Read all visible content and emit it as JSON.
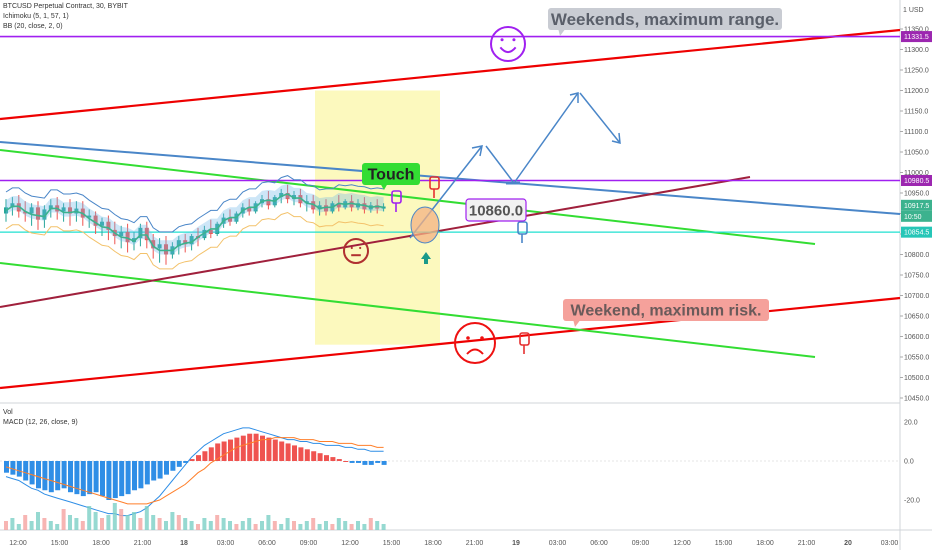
{
  "header": {
    "symbol_line": "BTCUSD Perpetual Contract, 30, BYBIT",
    "ichimoku_line": "Ichimoku (5, 1, 57, 1)",
    "bb_line": "BB (20, close, 2, 0)",
    "vol_label": "Vol",
    "macd_label": "MACD (12, 26, close, 9)"
  },
  "price_axis": {
    "currency": "1 USD",
    "ticks": [
      "11350.0",
      "11300.0",
      "11250.0",
      "11200.0",
      "11150.0",
      "11100.0",
      "11050.0",
      "11000.0",
      "10950.0",
      "10900.0",
      "10850.0",
      "10800.0",
      "10750.0",
      "10700.0",
      "10650.0",
      "10600.0",
      "10550.0",
      "10500.0",
      "10450.0"
    ],
    "badges": [
      {
        "label": "11331.5",
        "color": "#9c27b0"
      },
      {
        "label": "10980.5",
        "color": "#9c27b0"
      },
      {
        "label": "10917.5",
        "color": "#3cb28e"
      },
      {
        "label": "10:50",
        "color": "#3cb28e"
      },
      {
        "label": "10854.5",
        "color": "#26c6b7"
      }
    ]
  },
  "macd_axis": {
    "ticks": [
      "20.0",
      "0.0",
      "-20.0"
    ]
  },
  "time_axis": {
    "ticks": [
      "12:00",
      "15:00",
      "18:00",
      "21:00",
      "18",
      "03:00",
      "06:00",
      "09:00",
      "12:00",
      "15:00",
      "18:00",
      "21:00",
      "19",
      "03:00",
      "06:00",
      "09:00",
      "12:00",
      "15:00",
      "18:00",
      "21:00",
      "20",
      "03:00"
    ]
  },
  "annotations": {
    "top_note": "Weekends, maximum range.",
    "bottom_note": "Weekend, maximum risk.",
    "touch_label": "Touch",
    "price_label": "10860.0"
  },
  "colors": {
    "up": "#26a69a",
    "down": "#ef5350",
    "red_line": "#ee0000",
    "green_line": "#33dd33",
    "blue_line": "#4a86c8",
    "purple_line": "#a020f0",
    "maroon_line": "#a0203c",
    "cyan_line": "#20e0d0"
  },
  "chart_data": {
    "type": "candlestick",
    "symbol": "BTCUSD Perpetual Contract",
    "interval": "30",
    "exchange": "BYBIT",
    "ylim": [
      10450,
      11400
    ],
    "candles": [
      {
        "o": 10900,
        "h": 10935,
        "c": 10915,
        "l": 10880
      },
      {
        "o": 10915,
        "h": 10940,
        "c": 10925,
        "l": 10895
      },
      {
        "o": 10925,
        "h": 10945,
        "c": 10905,
        "l": 10890
      },
      {
        "o": 10905,
        "h": 10930,
        "c": 10900,
        "l": 10880
      },
      {
        "o": 10900,
        "h": 10925,
        "c": 10915,
        "l": 10870
      },
      {
        "o": 10915,
        "h": 10930,
        "c": 10885,
        "l": 10860
      },
      {
        "o": 10885,
        "h": 10920,
        "c": 10910,
        "l": 10865
      },
      {
        "o": 10910,
        "h": 10935,
        "c": 10920,
        "l": 10890
      },
      {
        "o": 10920,
        "h": 10940,
        "c": 10905,
        "l": 10885
      },
      {
        "o": 10905,
        "h": 10925,
        "c": 10915,
        "l": 10880
      },
      {
        "o": 10915,
        "h": 10935,
        "c": 10900,
        "l": 10870
      },
      {
        "o": 10900,
        "h": 10930,
        "c": 10912,
        "l": 10880
      },
      {
        "o": 10912,
        "h": 10930,
        "c": 10890,
        "l": 10870
      },
      {
        "o": 10890,
        "h": 10910,
        "c": 10895,
        "l": 10865
      },
      {
        "o": 10895,
        "h": 10905,
        "c": 10870,
        "l": 10850
      },
      {
        "o": 10870,
        "h": 10890,
        "c": 10880,
        "l": 10845
      },
      {
        "o": 10880,
        "h": 10895,
        "c": 10860,
        "l": 10835
      },
      {
        "o": 10860,
        "h": 10880,
        "c": 10845,
        "l": 10825
      },
      {
        "o": 10845,
        "h": 10870,
        "c": 10855,
        "l": 10815
      },
      {
        "o": 10855,
        "h": 10875,
        "c": 10830,
        "l": 10805
      },
      {
        "o": 10830,
        "h": 10855,
        "c": 10840,
        "l": 10810
      },
      {
        "o": 10840,
        "h": 10875,
        "c": 10865,
        "l": 10820
      },
      {
        "o": 10865,
        "h": 10880,
        "c": 10835,
        "l": 10815
      },
      {
        "o": 10835,
        "h": 10850,
        "c": 10815,
        "l": 10790
      },
      {
        "o": 10815,
        "h": 10840,
        "c": 10825,
        "l": 10780
      },
      {
        "o": 10825,
        "h": 10845,
        "c": 10800,
        "l": 10775
      },
      {
        "o": 10800,
        "h": 10830,
        "c": 10820,
        "l": 10790
      },
      {
        "o": 10820,
        "h": 10845,
        "c": 10835,
        "l": 10800
      },
      {
        "o": 10835,
        "h": 10850,
        "c": 10825,
        "l": 10805
      },
      {
        "o": 10825,
        "h": 10850,
        "c": 10845,
        "l": 10810
      },
      {
        "o": 10845,
        "h": 10865,
        "c": 10840,
        "l": 10820
      },
      {
        "o": 10840,
        "h": 10870,
        "c": 10860,
        "l": 10835
      },
      {
        "o": 10860,
        "h": 10885,
        "c": 10850,
        "l": 10840
      },
      {
        "o": 10850,
        "h": 10880,
        "c": 10875,
        "l": 10845
      },
      {
        "o": 10875,
        "h": 10900,
        "c": 10890,
        "l": 10865
      },
      {
        "o": 10890,
        "h": 10910,
        "c": 10880,
        "l": 10870
      },
      {
        "o": 10880,
        "h": 10905,
        "c": 10900,
        "l": 10875
      },
      {
        "o": 10900,
        "h": 10925,
        "c": 10915,
        "l": 10890
      },
      {
        "o": 10915,
        "h": 10935,
        "c": 10905,
        "l": 10895
      },
      {
        "o": 10905,
        "h": 10930,
        "c": 10925,
        "l": 10900
      },
      {
        "o": 10925,
        "h": 10945,
        "c": 10935,
        "l": 10915
      },
      {
        "o": 10935,
        "h": 10955,
        "c": 10920,
        "l": 10910
      },
      {
        "o": 10920,
        "h": 10945,
        "c": 10940,
        "l": 10915
      },
      {
        "o": 10940,
        "h": 10960,
        "c": 10950,
        "l": 10925
      },
      {
        "o": 10950,
        "h": 10970,
        "c": 10935,
        "l": 10925
      },
      {
        "o": 10935,
        "h": 10955,
        "c": 10945,
        "l": 10920
      },
      {
        "o": 10945,
        "h": 10960,
        "c": 10925,
        "l": 10915
      },
      {
        "o": 10925,
        "h": 10945,
        "c": 10930,
        "l": 10905
      },
      {
        "o": 10930,
        "h": 10945,
        "c": 10910,
        "l": 10900
      },
      {
        "o": 10910,
        "h": 10930,
        "c": 10920,
        "l": 10895
      },
      {
        "o": 10920,
        "h": 10935,
        "c": 10905,
        "l": 10895
      },
      {
        "o": 10905,
        "h": 10930,
        "c": 10925,
        "l": 10900
      },
      {
        "o": 10925,
        "h": 10945,
        "c": 10915,
        "l": 10905
      },
      {
        "o": 10915,
        "h": 10935,
        "c": 10930,
        "l": 10910
      },
      {
        "o": 10930,
        "h": 10945,
        "c": 10915,
        "l": 10905
      },
      {
        "o": 10915,
        "h": 10935,
        "c": 10925,
        "l": 10908
      },
      {
        "o": 10925,
        "h": 10940,
        "c": 10910,
        "l": 10900
      },
      {
        "o": 10910,
        "h": 10928,
        "c": 10920,
        "l": 10902
      },
      {
        "o": 10920,
        "h": 10935,
        "c": 10912,
        "l": 10900
      },
      {
        "o": 10912,
        "h": 10925,
        "c": 10917,
        "l": 10905
      }
    ],
    "macd_histogram": [
      -6,
      -7,
      -8,
      -10,
      -12,
      -14,
      -15,
      -16,
      -15,
      -14,
      -16,
      -17,
      -18,
      -17,
      -16,
      -18,
      -20,
      -19,
      -18,
      -17,
      -15,
      -14,
      -12,
      -10,
      -9,
      -7,
      -5,
      -3,
      -1,
      1,
      3,
      5,
      7,
      9,
      10,
      11,
      12,
      13,
      14,
      14,
      13,
      12,
      11,
      10,
      9,
      8,
      7,
      6,
      5,
      4,
      3,
      2,
      1,
      0,
      -1,
      -1,
      -2,
      -2,
      -1,
      -2
    ],
    "macd_line": [
      -8,
      -9,
      -10,
      -12,
      -14,
      -15,
      -17,
      -18,
      -19,
      -20,
      -21,
      -22,
      -23,
      -24,
      -25,
      -26,
      -27,
      -27,
      -28,
      -28,
      -27,
      -26,
      -24,
      -21,
      -18,
      -14,
      -10,
      -6,
      -2,
      2,
      5,
      8,
      10,
      12,
      14,
      15,
      16,
      17,
      17,
      16,
      15,
      14,
      13,
      12,
      11,
      11,
      10,
      10,
      9,
      9,
      8,
      8,
      8,
      7,
      7,
      6,
      6,
      5,
      5,
      5
    ],
    "signal_line": [
      -3,
      -4,
      -5,
      -6,
      -7,
      -8,
      -9,
      -10,
      -11,
      -12,
      -13,
      -14,
      -15,
      -16,
      -17,
      -18,
      -19,
      -20,
      -21,
      -22,
      -22,
      -22,
      -22,
      -21,
      -20,
      -18,
      -16,
      -14,
      -12,
      -9,
      -6,
      -4,
      -1,
      1,
      3,
      5,
      7,
      8,
      9,
      10,
      11,
      11,
      12,
      12,
      12,
      12,
      11,
      11,
      11,
      10,
      10,
      10,
      9,
      9,
      9,
      8,
      8,
      8,
      7,
      7
    ],
    "volume": [
      3,
      4,
      2,
      5,
      3,
      6,
      4,
      3,
      2,
      7,
      5,
      4,
      3,
      8,
      6,
      4,
      5,
      9,
      7,
      5,
      6,
      4,
      8,
      5,
      4,
      3,
      6,
      5,
      4,
      3,
      2,
      4,
      3,
      5,
      4,
      3,
      2,
      3,
      4,
      2,
      3,
      5,
      3,
      2,
      4,
      3,
      2,
      3,
      4,
      2,
      3,
      2,
      4,
      3,
      2,
      3,
      2,
      4,
      3,
      2
    ],
    "levels": {
      "resistance": 11331.5,
      "pivot": 10980.5,
      "last_price": 10917.5,
      "support": 10854.5,
      "target_label": 10860.0
    }
  }
}
